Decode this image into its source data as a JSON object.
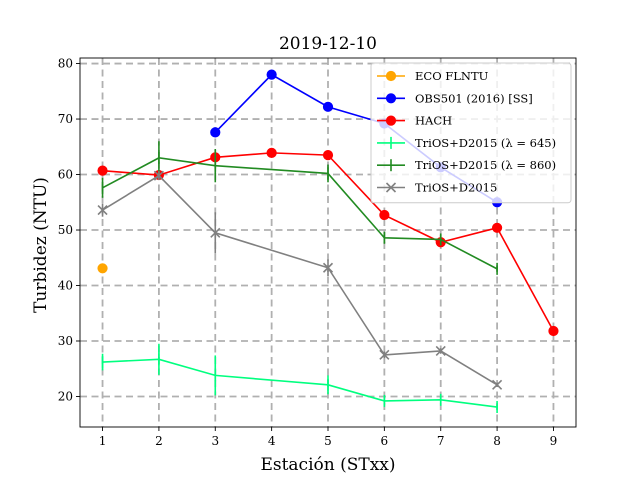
{
  "chart_data": {
    "type": "line",
    "title": "2019-12-10",
    "xlabel": "Estación (STxx)",
    "ylabel": "Turbidez (NTU)",
    "xlim": [
      0.6,
      9.4
    ],
    "ylim": [
      14.5,
      81
    ],
    "xticks": [
      1,
      2,
      3,
      4,
      5,
      6,
      7,
      8,
      9
    ],
    "yticks": [
      20,
      30,
      40,
      50,
      60,
      70,
      80
    ],
    "grid": true,
    "legend_position": "upper-right",
    "series": [
      {
        "name": "ECO FLNTU",
        "color": "#ffa500",
        "marker": "o",
        "x": [
          1
        ],
        "y": [
          43.1
        ],
        "yerr": [
          0
        ]
      },
      {
        "name": "OBS501 (2016) [SS]",
        "color": "#0000ff",
        "marker": "o",
        "x": [
          3,
          4,
          5,
          6,
          7,
          8
        ],
        "y": [
          67.6,
          78.0,
          72.2,
          69.2,
          61.3,
          55.0
        ],
        "yerr": [
          0,
          0,
          0,
          0,
          0,
          0
        ]
      },
      {
        "name": "HACH",
        "color": "#ff0000",
        "marker": "o",
        "x": [
          1,
          2,
          3,
          4,
          5,
          6,
          7,
          8,
          9
        ],
        "y": [
          60.7,
          59.9,
          63.1,
          63.9,
          63.5,
          52.7,
          47.8,
          50.4,
          31.8
        ],
        "yerr": [
          0,
          0,
          0,
          0,
          0,
          0,
          0,
          0,
          0
        ]
      },
      {
        "name": "TriOS+D2015 (λ = 645)",
        "color": "#00ff7f",
        "marker": "|",
        "x": [
          1,
          2,
          3,
          5,
          6,
          7,
          8
        ],
        "y": [
          26.2,
          26.7,
          23.8,
          22.1,
          19.2,
          19.4,
          18.1
        ],
        "yerr": [
          1.5,
          2.8,
          3.6,
          1.7,
          0.7,
          0.6,
          0.5
        ]
      },
      {
        "name": "TriOS+D2015 (λ = 860)",
        "color": "#228b22",
        "marker": "|",
        "x": [
          1,
          2,
          3,
          5,
          6,
          7,
          8
        ],
        "y": [
          57.6,
          63.0,
          61.6,
          60.2,
          48.6,
          48.3,
          43.0
        ],
        "yerr": [
          1.8,
          3.0,
          3.0,
          1.6,
          1.0,
          0.8,
          0.5
        ]
      },
      {
        "name": "TriOS+D2015",
        "color": "#808080",
        "marker": "x",
        "x": [
          1,
          2,
          3,
          5,
          6,
          7,
          8
        ],
        "y": [
          53.6,
          59.8,
          49.5,
          43.2,
          27.5,
          28.2,
          22.1
        ],
        "yerr": [
          1.2,
          0.8,
          3.7,
          1.5,
          0.6,
          0.5,
          0.4
        ]
      }
    ]
  }
}
